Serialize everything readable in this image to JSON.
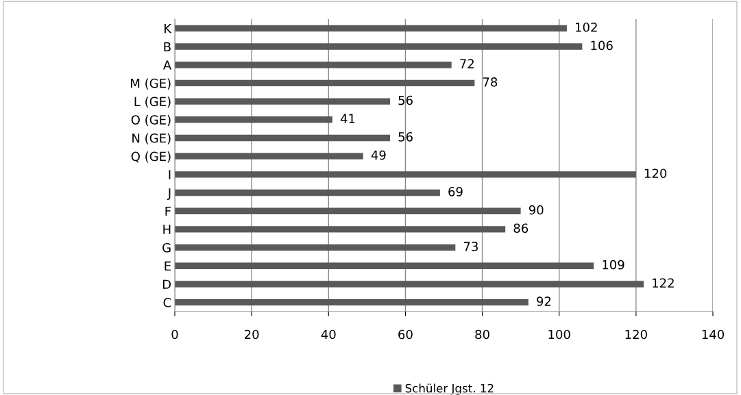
{
  "chart_data": {
    "type": "bar",
    "orientation": "horizontal",
    "categories": [
      "K",
      "B",
      "A",
      "M (GE)",
      "L (GE)",
      "O (GE)",
      "N (GE)",
      "Q (GE)",
      "I",
      "J",
      "F",
      "H",
      "G",
      "E",
      "D",
      "C"
    ],
    "series": [
      {
        "name": "Schüler Jgst. 12",
        "color": "#595959",
        "values": [
          102,
          106,
          72,
          78,
          56,
          41,
          56,
          49,
          120,
          69,
          90,
          86,
          73,
          109,
          122,
          92
        ]
      }
    ],
    "xlim": [
      0,
      140
    ],
    "xticks": [
      0,
      20,
      40,
      60,
      80,
      100,
      120,
      140
    ],
    "grid": "x",
    "legend": "bottom",
    "data_labels": true
  }
}
